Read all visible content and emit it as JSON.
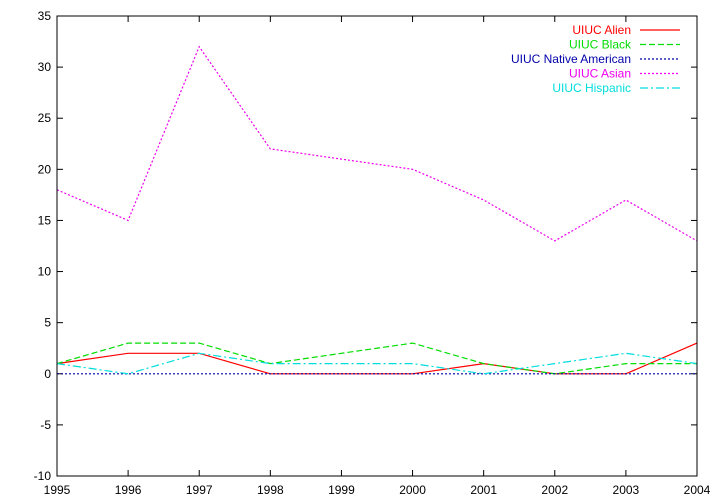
{
  "chart_data": {
    "type": "line",
    "title": "",
    "xlabel": "",
    "ylabel": "",
    "x": [
      1995,
      1996,
      1997,
      1998,
      1999,
      2000,
      2001,
      2002,
      2003,
      2004
    ],
    "xlim": [
      1995,
      2004
    ],
    "ylim": [
      -10,
      35
    ],
    "x_ticks": [
      1995,
      1996,
      1997,
      1998,
      1999,
      2000,
      2001,
      2002,
      2003,
      2004
    ],
    "y_ticks": [
      -10,
      -5,
      0,
      5,
      10,
      15,
      20,
      25,
      30,
      35
    ],
    "grid": false,
    "legend_position": "top-right",
    "series": [
      {
        "name": "UIUC Alien",
        "color": "#ff0000",
        "dash": "solid",
        "values": [
          1,
          2,
          2,
          0,
          0,
          0,
          1,
          0,
          0,
          3
        ]
      },
      {
        "name": "UIUC Black",
        "color": "#00dd00",
        "dash": "dashed",
        "values": [
          1,
          3,
          3,
          1,
          2,
          3,
          1,
          0,
          1,
          1
        ]
      },
      {
        "name": "UIUC Native American",
        "color": "#0000aa",
        "dash": "dotted",
        "values": [
          0,
          0,
          0,
          0,
          0,
          0,
          0,
          0,
          0,
          0
        ]
      },
      {
        "name": "UIUC Asian",
        "color": "#ee00ee",
        "dash": "dotted",
        "values": [
          18,
          15,
          32,
          22,
          21,
          20,
          17,
          13,
          17,
          13
        ]
      },
      {
        "name": "UIUC Hispanic",
        "color": "#00dddd",
        "dash": "dashdot",
        "values": [
          1,
          0,
          2,
          1,
          1,
          1,
          0,
          1,
          2,
          1
        ]
      }
    ]
  }
}
